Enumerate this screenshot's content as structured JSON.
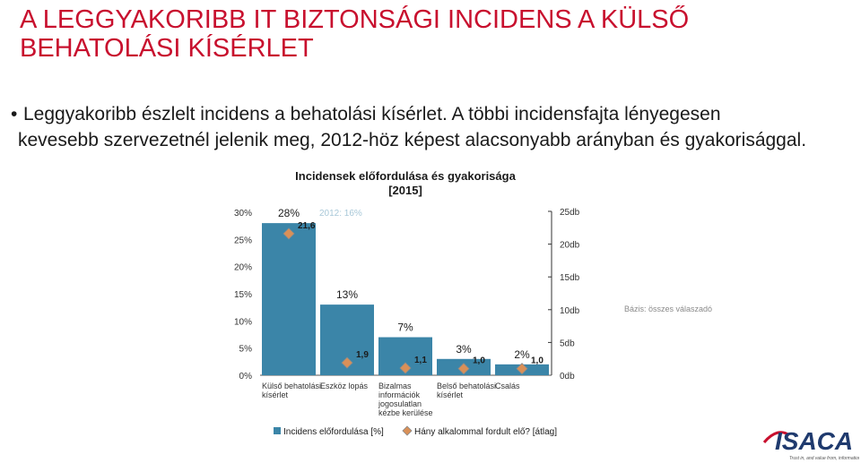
{
  "slide": {
    "title": "A LEGGYAKORIBB IT BIZTONSÁGI INCIDENS A KÜLSŐ BEHATOLÁSI KÍSÉRLET",
    "bullet_marker": "•",
    "bullet_line1": "Leggyakoribb észlelt incidens a behatolási kísérlet. A többi incidensfajta lényegesen",
    "bullet_line2": "kevesebb szervezetnél jelenik meg,  2012-höz képest alacsonyabb arányban és gyakorisággal."
  },
  "logo": {
    "text": "ISACA",
    "tagline": "Trust in, and value from, information systems",
    "color": "#1f3a6e"
  },
  "chart_data": {
    "type": "bar",
    "title": "Incidensek előfordulása és gyakorisága",
    "subtitle": "[2015]",
    "categories": [
      "Külső behatolási kísérlet",
      "Eszköz lopás",
      "Bizalmas információk jogosulatlan kézbe kerülése",
      "Belső behatolási kísérlet",
      "Csalás"
    ],
    "category_label_lines": [
      [
        "Külső behatolási",
        "kísérlet"
      ],
      [
        "Eszköz lopás"
      ],
      [
        "Bizalmas",
        "információk",
        "jogosulatlan",
        "kézbe kerülése"
      ],
      [
        "Belső behatolási",
        "kísérlet"
      ],
      [
        "Csalás"
      ]
    ],
    "series": [
      {
        "name": "Incidens előfordulása [%]",
        "axis": "left",
        "values": [
          28,
          13,
          7,
          3,
          2
        ],
        "labels": [
          "28%",
          "13%",
          "7%",
          "3%",
          "2%"
        ],
        "color": "#3b85a8"
      },
      {
        "name": "Hány alkalommal fordult elő? [átlag]",
        "axis": "right",
        "values": [
          21.6,
          1.9,
          1.1,
          1.0,
          1.0
        ],
        "labels": [
          "21,6",
          "1,9",
          "1,1",
          "1,0",
          "1,0"
        ],
        "color": "#d99058"
      }
    ],
    "left_axis": {
      "ticks": [
        "0%",
        "5%",
        "10%",
        "15%",
        "20%",
        "25%",
        "30%"
      ],
      "min": 0,
      "max": 30
    },
    "right_axis": {
      "ticks": [
        "0db",
        "5db",
        "10db",
        "15db",
        "20db",
        "25db"
      ],
      "min": 0,
      "max": 25
    },
    "annotations": {
      "comparison": "2012: 16%",
      "base_note": "Bázis: összes válaszadó"
    },
    "grid": false,
    "legend_position": "bottom"
  }
}
